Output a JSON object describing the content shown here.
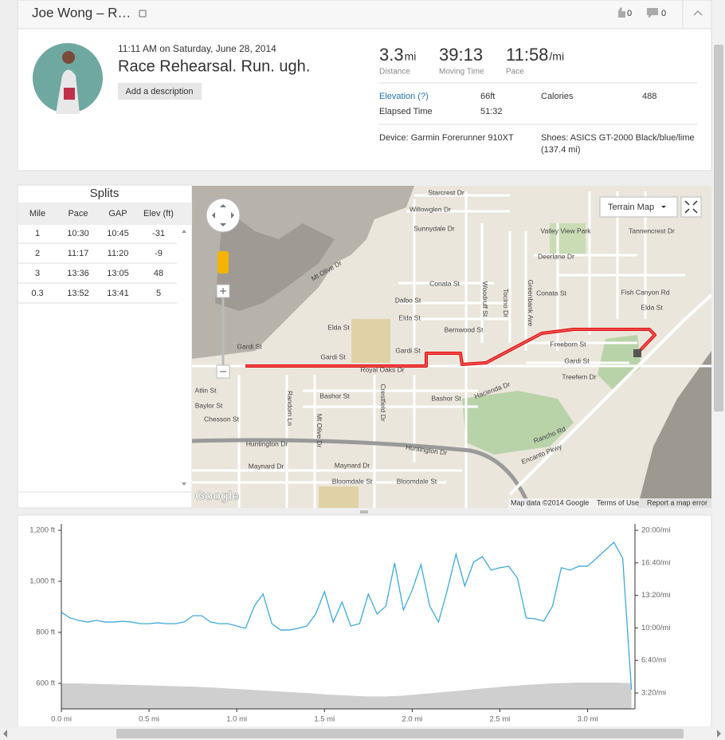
{
  "header": {
    "title": "Joe Wong – R…",
    "kudos": "0",
    "comments": "0"
  },
  "activity": {
    "datetime": "11:11 AM on Saturday, June 28, 2014",
    "title": "Race Rehearsal. Run. ugh.",
    "add_description": "Add a description",
    "stats": [
      {
        "value": "3.3",
        "unit": "mi",
        "label": "Distance"
      },
      {
        "value": "39:13",
        "label": "Moving Time"
      },
      {
        "value": "11:58",
        "unit": "/mi",
        "label": "Pace"
      }
    ],
    "details": [
      [
        "Elevation (?)",
        "66ft",
        "Calories",
        "488"
      ],
      [
        "Elapsed Time",
        "51:32"
      ]
    ],
    "device": "Device: Garmin Forerunner 910XT",
    "shoes": "Shoes: ASICS GT-2000 Black/blue/lime",
    "shoes_distance": "(137.4 mi)"
  },
  "splits": {
    "title": "Splits",
    "columns": [
      "Mile",
      "Pace",
      "GAP",
      "Elev (ft)"
    ],
    "rows": [
      [
        "1",
        "10:30",
        "10:45",
        "-31"
      ],
      [
        "2",
        "11:17",
        "11:20",
        "-9"
      ],
      [
        "3",
        "13:36",
        "13:05",
        "48"
      ],
      [
        "0.3",
        "13:52",
        "13:41",
        "5"
      ]
    ]
  },
  "map": {
    "type_button": "Terrain Map",
    "labels": [
      "Starcrest Dr",
      "Willowglen Dr",
      "Sunnydale Dr",
      "Valley View Park",
      "Deerlane Dr",
      "Tannencrest Dr",
      "Conata St",
      "Conata St",
      "Dalbo St",
      "Elda St",
      "Elda St",
      "Elda St",
      "Bernwood St",
      "Gardi St",
      "Gardi St",
      "Gardi St",
      "Gardi St",
      "Royal Oaks Dr",
      "Freeborn St",
      "Treefern Dr",
      "Fish Canyon Rd",
      "Bashor St",
      "Bashor St",
      "Atlin St",
      "Baylor St",
      "Chesson St",
      "Huntington Dr",
      "Huntington Dr",
      "Maynard Dr",
      "Maynard Dr",
      "Bloomdale St",
      "Bloomdale St",
      "Hacienda Dr",
      "Rancho Rd",
      "Encanto Pkwy",
      "Mt Olive Dr",
      "Random Ln",
      "Woodruff St",
      "Tocino Dr",
      "Greenbank Ave",
      "Mt Olive Dr",
      "Crestfield Dr"
    ],
    "attribution": "Map data ©2014 Google",
    "terms": "Terms of Use",
    "report": "Report a map error",
    "logo": "Google"
  },
  "chart_data": {
    "type": "line",
    "x": [
      0,
      0.05,
      0.1,
      0.15,
      0.2,
      0.25,
      0.3,
      0.35,
      0.4,
      0.45,
      0.5,
      0.55,
      0.6,
      0.65,
      0.7,
      0.75,
      0.8,
      0.85,
      0.9,
      0.95,
      1,
      1.05,
      1.1,
      1.15,
      1.2,
      1.25,
      1.3,
      1.35,
      1.4,
      1.45,
      1.5,
      1.55,
      1.6,
      1.65,
      1.7,
      1.75,
      1.8,
      1.85,
      1.9,
      1.95,
      2,
      2.05,
      2.1,
      2.15,
      2.2,
      2.25,
      2.3,
      2.35,
      2.4,
      2.45,
      2.5,
      2.55,
      2.6,
      2.65,
      2.7,
      2.75,
      2.8,
      2.85,
      2.9,
      2.95,
      3,
      3.05,
      3.1,
      3.15,
      3.2,
      3.25
    ],
    "series": [
      {
        "type": "area",
        "color": "#cfcfcf",
        "values": [
          600,
          600,
          600,
          599,
          598,
          597,
          596,
          595,
          594,
          593,
          592,
          591,
          590,
          589,
          588,
          587,
          585,
          584,
          582,
          580,
          578,
          576,
          574,
          572,
          570,
          568,
          566,
          564,
          562,
          560,
          557,
          555,
          553,
          552,
          550,
          549,
          549,
          549,
          550,
          552,
          555,
          558,
          561,
          564,
          567,
          570,
          573,
          577,
          580,
          583,
          586,
          589,
          591,
          594,
          596,
          598,
          600,
          601,
          602,
          603,
          603,
          603,
          603,
          603,
          602,
          601
        ]
      },
      {
        "type": "line",
        "color": "#3fa9d8",
        "axis": "y2",
        "values": [
          695,
          661,
          646,
          636,
          646,
          636,
          636,
          641,
          636,
          626,
          626,
          631,
          626,
          626,
          636,
          675,
          675,
          636,
          626,
          626,
          612,
          597,
          734,
          808,
          626,
          587,
          587,
          597,
          612,
          685,
          823,
          636,
          759,
          612,
          626,
          808,
          685,
          734,
          999,
          710,
          832,
          989,
          734,
          636,
          832,
          1053,
          857,
          1004,
          1038,
          955,
          970,
          979,
          906,
          661,
          656,
          641,
          734,
          970,
          955,
          979,
          979,
          1028,
          1077,
          1126,
          1028,
          220
        ]
      }
    ],
    "xlim": [
      0,
      3.27
    ],
    "xticks": [
      {
        "value": 0,
        "label": "0.0 mi"
      },
      {
        "value": 0.5,
        "label": "0.5 mi"
      },
      {
        "value": 1,
        "label": "1.0 mi"
      },
      {
        "value": 1.5,
        "label": "1.5 mi"
      },
      {
        "value": 2,
        "label": "2.0 mi"
      },
      {
        "value": 2.5,
        "label": "2.5 mi"
      },
      {
        "value": 3,
        "label": "3.0 mi"
      }
    ],
    "ylim": [
      500,
      1200
    ],
    "yticks": [
      {
        "value": 600,
        "label": "600 ft"
      },
      {
        "value": 800,
        "label": "800 ft"
      },
      {
        "value": 1000,
        "label": "1,000 ft"
      },
      {
        "value": 1200,
        "label": "1,200 ft"
      }
    ],
    "y2lim": [
      102,
      1200
    ],
    "y2ticks": [
      {
        "value": 200,
        "label": "3:20/mi"
      },
      {
        "value": 400,
        "label": "6:40/mi"
      },
      {
        "value": 600,
        "label": "10:00/mi"
      },
      {
        "value": 800,
        "label": "13:20/mi"
      },
      {
        "value": 1000,
        "label": "16:40/mi"
      },
      {
        "value": 1200,
        "label": "20:00/mi"
      }
    ]
  }
}
